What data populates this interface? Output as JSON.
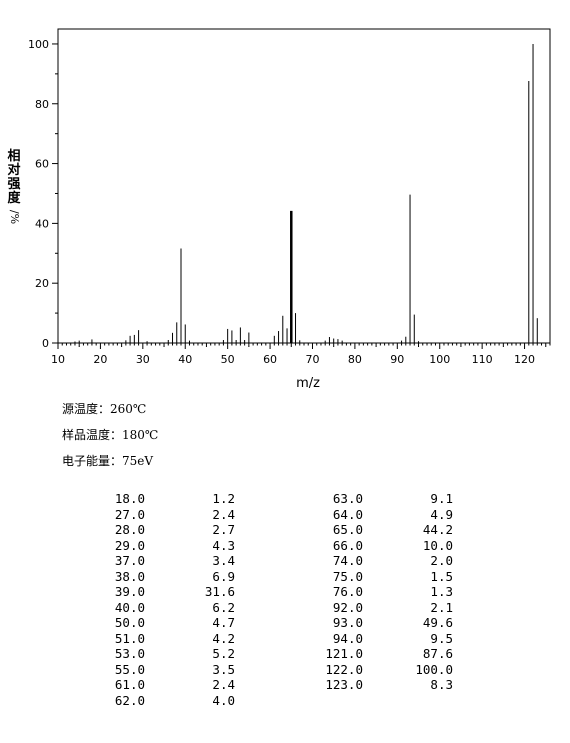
{
  "chart_data": {
    "type": "bar",
    "xlabel": "m/z",
    "ylabel_chars": [
      "相",
      "对",
      "强",
      "度",
      "/%"
    ],
    "xlim": [
      10,
      126
    ],
    "ylim": [
      0,
      105
    ],
    "xticks": [
      "10",
      "20",
      "30",
      "40",
      "50",
      "60",
      "70",
      "80",
      "90",
      "100",
      "110",
      "120"
    ],
    "yticks": [
      "0",
      "20",
      "40",
      "60",
      "80",
      "100"
    ],
    "bold_peak_mz": 65,
    "peaks": [
      {
        "mz": 14,
        "rel": 0.5
      },
      {
        "mz": 15,
        "rel": 0.8
      },
      {
        "mz": 18,
        "rel": 1.2
      },
      {
        "mz": 26,
        "rel": 0.9
      },
      {
        "mz": 27,
        "rel": 2.4
      },
      {
        "mz": 28,
        "rel": 2.7
      },
      {
        "mz": 29,
        "rel": 4.3
      },
      {
        "mz": 31,
        "rel": 0.6
      },
      {
        "mz": 36,
        "rel": 1.0
      },
      {
        "mz": 37,
        "rel": 3.4
      },
      {
        "mz": 38,
        "rel": 6.9
      },
      {
        "mz": 39,
        "rel": 31.6
      },
      {
        "mz": 40,
        "rel": 6.2
      },
      {
        "mz": 41,
        "rel": 0.8
      },
      {
        "mz": 49,
        "rel": 1.0
      },
      {
        "mz": 50,
        "rel": 4.7
      },
      {
        "mz": 51,
        "rel": 4.2
      },
      {
        "mz": 52,
        "rel": 1.0
      },
      {
        "mz": 53,
        "rel": 5.2
      },
      {
        "mz": 54,
        "rel": 1.0
      },
      {
        "mz": 55,
        "rel": 3.5
      },
      {
        "mz": 61,
        "rel": 2.4
      },
      {
        "mz": 62,
        "rel": 4.0
      },
      {
        "mz": 63,
        "rel": 9.1
      },
      {
        "mz": 64,
        "rel": 4.9
      },
      {
        "mz": 65,
        "rel": 44.2
      },
      {
        "mz": 66,
        "rel": 10.0
      },
      {
        "mz": 67,
        "rel": 0.9
      },
      {
        "mz": 73,
        "rel": 0.8
      },
      {
        "mz": 74,
        "rel": 2.0
      },
      {
        "mz": 75,
        "rel": 1.5
      },
      {
        "mz": 76,
        "rel": 1.3
      },
      {
        "mz": 77,
        "rel": 0.8
      },
      {
        "mz": 91,
        "rel": 0.8
      },
      {
        "mz": 92,
        "rel": 2.1
      },
      {
        "mz": 93,
        "rel": 49.6
      },
      {
        "mz": 94,
        "rel": 9.5
      },
      {
        "mz": 95,
        "rel": 0.6
      },
      {
        "mz": 121,
        "rel": 87.6
      },
      {
        "mz": 122,
        "rel": 100.0
      },
      {
        "mz": 123,
        "rel": 8.3
      }
    ]
  },
  "conditions": {
    "source_temp": "源温度：260℃",
    "sample_temp": "样品温度：180℃",
    "electron_energy": "电子能量：75eV"
  },
  "peak_table": {
    "left_mz": [
      "18.0",
      "27.0",
      "28.0",
      "29.0",
      "37.0",
      "38.0",
      "39.0",
      "40.0",
      "50.0",
      "51.0",
      "53.0",
      "55.0",
      "61.0",
      "62.0"
    ],
    "left_int": [
      "1.2",
      "2.4",
      "2.7",
      "4.3",
      "3.4",
      "6.9",
      "31.6",
      "6.2",
      "4.7",
      "4.2",
      "5.2",
      "3.5",
      "2.4",
      "4.0"
    ],
    "right_mz": [
      "63.0",
      "64.0",
      "65.0",
      "66.0",
      "74.0",
      "75.0",
      "76.0",
      "92.0",
      "93.0",
      "94.0",
      "121.0",
      "122.0",
      "123.0"
    ],
    "right_int": [
      "9.1",
      "4.9",
      "44.2",
      "10.0",
      "2.0",
      "1.5",
      "1.3",
      "2.1",
      "49.6",
      "9.5",
      "87.6",
      "100.0",
      "8.3"
    ]
  }
}
